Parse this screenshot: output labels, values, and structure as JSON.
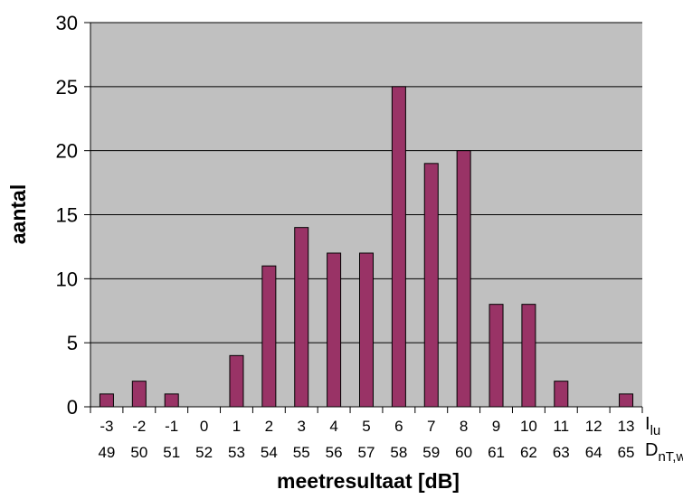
{
  "chart_data": {
    "type": "bar",
    "categories_row1": [
      "-3",
      "-2",
      "-1",
      "0",
      "1",
      "2",
      "3",
      "4",
      "5",
      "6",
      "7",
      "8",
      "9",
      "10",
      "11",
      "12",
      "13"
    ],
    "categories_row2": [
      "49",
      "50",
      "51",
      "52",
      "53",
      "54",
      "55",
      "56",
      "57",
      "58",
      "59",
      "60",
      "61",
      "62",
      "63",
      "64",
      "65"
    ],
    "values": [
      1,
      2,
      1,
      0,
      4,
      11,
      14,
      12,
      12,
      25,
      19,
      20,
      8,
      8,
      2,
      0,
      1
    ],
    "row1_label": {
      "main": "I",
      "sub": "lu"
    },
    "row2_label": {
      "main": "D",
      "sub": "nT,w"
    },
    "xlabel": "meetresultaat [dB]",
    "ylabel": "aantal",
    "ylim": [
      0,
      30
    ],
    "yticks": [
      "0",
      "5",
      "10",
      "15",
      "20",
      "25",
      "30"
    ],
    "grid": true,
    "legend": "none",
    "colors": {
      "bar": "#993366",
      "plot_bg": "#c0c0c0",
      "grid": "#000000"
    }
  }
}
